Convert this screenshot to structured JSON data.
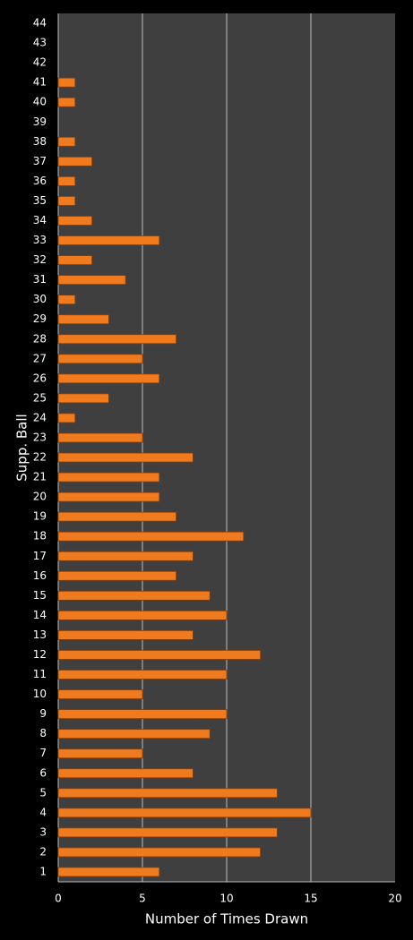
{
  "chart_data": {
    "type": "bar",
    "orientation": "horizontal",
    "x_label": "Number of Times Drawn",
    "y_label": "Supp. Ball",
    "categories": [
      "1",
      "2",
      "3",
      "4",
      "5",
      "6",
      "7",
      "8",
      "9",
      "10",
      "11",
      "12",
      "13",
      "14",
      "15",
      "16",
      "17",
      "18",
      "19",
      "20",
      "21",
      "22",
      "23",
      "24",
      "25",
      "26",
      "27",
      "28",
      "29",
      "30",
      "31",
      "32",
      "33",
      "34",
      "35",
      "36",
      "37",
      "38",
      "39",
      "40",
      "41",
      "42",
      "43",
      "44"
    ],
    "values": [
      6,
      12,
      13,
      15,
      13,
      8,
      5,
      9,
      10,
      5,
      10,
      12,
      8,
      10,
      9,
      7,
      8,
      11,
      7,
      6,
      6,
      8,
      5,
      1,
      3,
      6,
      5,
      7,
      3,
      1,
      4,
      2,
      6,
      2,
      1,
      1,
      2,
      1,
      0,
      1,
      1,
      0,
      0,
      0
    ],
    "color": "#f07a1e",
    "xlim": [
      0,
      20
    ],
    "xticks": [
      0,
      5,
      10,
      15,
      20
    ],
    "grid": true
  }
}
